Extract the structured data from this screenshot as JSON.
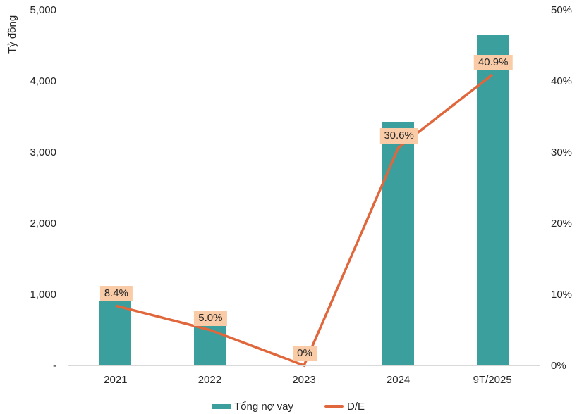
{
  "chart_data": {
    "type": "combo-bar-line",
    "categories": [
      "2021",
      "2022",
      "2023",
      "2024",
      "9T/2025"
    ],
    "series": [
      {
        "name": "Tổng nợ vay",
        "type": "bar",
        "axis": "left",
        "values": [
          900,
          575,
          0,
          3430,
          4640
        ],
        "color": "#3A9F9D"
      },
      {
        "name": "D/E",
        "type": "line",
        "axis": "right",
        "values": [
          8.4,
          5.0,
          0,
          30.6,
          40.9
        ],
        "point_labels": [
          "8.4%",
          "5.0%",
          "0%",
          "30.6%",
          "40.9%"
        ],
        "color": "#E0673C",
        "point_label_bg": "#F9CCA7"
      }
    ],
    "left_axis": {
      "title": "Tỷ đồng",
      "tick_labels": [
        "5,000",
        "4,000",
        "3,000",
        "2,000",
        "1,000",
        "-"
      ],
      "min": 0,
      "max": 5000
    },
    "right_axis": {
      "tick_labels": [
        "50%",
        "40%",
        "30%",
        "20%",
        "10%",
        "0%"
      ],
      "min": 0,
      "max": 50
    },
    "legend": [
      {
        "label": "Tổng nợ vay",
        "type": "bar",
        "color": "#3A9F9D"
      },
      {
        "label": "D/E",
        "type": "line",
        "color": "#E0673C"
      }
    ],
    "grid": "off",
    "legend_position": "bottom-center",
    "axis_line_color": "#D9D9D9"
  }
}
